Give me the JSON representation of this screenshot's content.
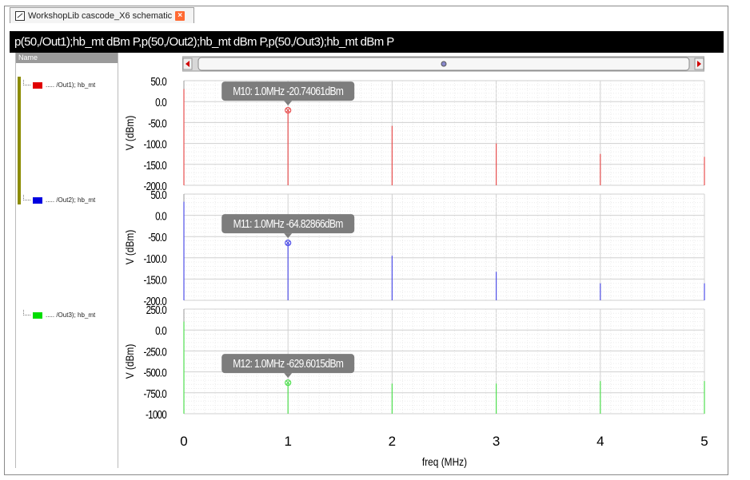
{
  "window": {
    "tab_title": "WorkshopLib cascode_X6 schematic",
    "header_text": "p(50,/Out1);hb_mt dBm P,p(50,/Out2);hb_mt dBm P,p(50,/Out3);hb_mt dBm P"
  },
  "sidebar": {
    "header": "Name",
    "items": [
      {
        "label": "..... /Out1); hb_mt",
        "color": "#e00000"
      },
      {
        "label": "..... /Out2); hb_mt",
        "color": "#0000e0"
      },
      {
        "label": "..... /Out3); hb_mt",
        "color": "#00dd00"
      }
    ]
  },
  "chart_data": {
    "type": "bar",
    "xlabel": "freq (MHz)",
    "xlim": [
      0,
      5
    ],
    "x_ticks": [
      "0",
      "1",
      "2",
      "3",
      "4",
      "5"
    ],
    "panels": [
      {
        "ylabel": "V (dBm)",
        "ylim": [
          -200,
          50
        ],
        "y_ticks": [
          "50.0",
          "0.0",
          "-50.0",
          "-100.0",
          "-150.0",
          "-200.0"
        ],
        "color": "#e85050",
        "x": [
          0,
          1,
          2,
          3,
          4,
          5
        ],
        "values": [
          30,
          -20.74,
          -58,
          -100,
          -125,
          -132
        ],
        "marker": {
          "label": "M10: 1.0MHz -20.74061dBm",
          "x": 1,
          "y": -20.74
        }
      },
      {
        "ylabel": "V (dBm)",
        "ylim": [
          -200,
          50
        ],
        "y_ticks": [
          "50.0",
          "0.0",
          "-50.0",
          "-100.0",
          "-150.0",
          "-200.0"
        ],
        "color": "#5050e8",
        "x": [
          0,
          1,
          2,
          3,
          4,
          5
        ],
        "values": [
          32,
          -64.83,
          -95,
          -133,
          -160,
          -160
        ],
        "marker": {
          "label": "M11: 1.0MHz -64.82866dBm",
          "x": 1,
          "y": -64.83
        }
      },
      {
        "ylabel": "V (dBm)",
        "ylim": [
          -1000,
          250
        ],
        "y_ticks": [
          "250.0",
          "0.0",
          "-250.0",
          "-500.0",
          "-750.0",
          "-1000"
        ],
        "color": "#50e050",
        "x": [
          0,
          1,
          2,
          3,
          4,
          5
        ],
        "values": [
          100,
          -629.6,
          -640,
          -640,
          -610,
          -610
        ],
        "marker": {
          "label": "M12: 1.0MHz -629.6015dBm",
          "x": 1,
          "y": -629.6
        }
      }
    ]
  }
}
